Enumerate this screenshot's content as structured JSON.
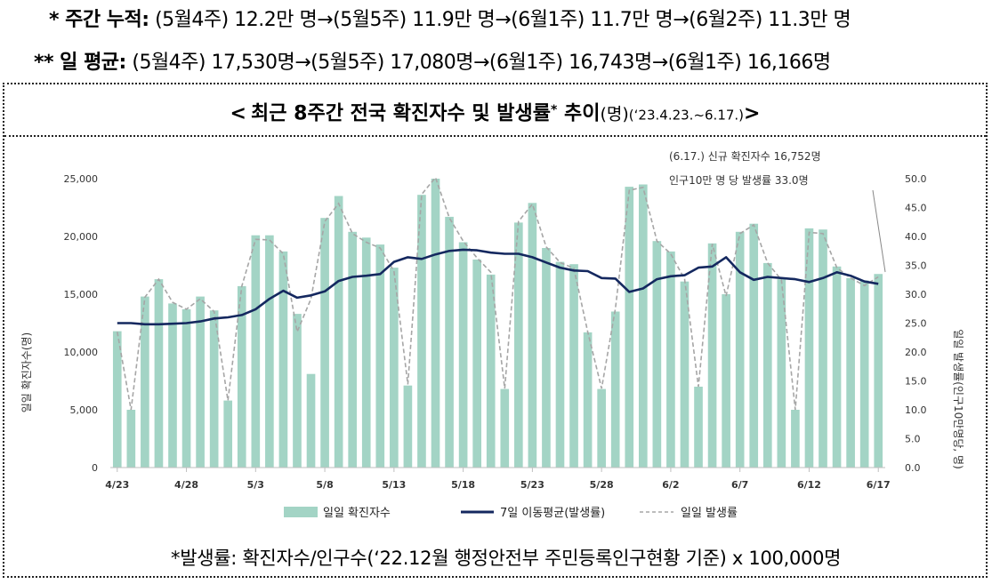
{
  "summary": {
    "weekly_label": "* 주간 누적:",
    "weekly_text": "(5월4주) 12.2만 명→(5월5주) 11.9만 명→(6월1주) 11.7만 명→(6월2주) 11.3만 명",
    "daily_label": "** 일 평균:",
    "daily_text": "(5월4주) 17,530명→(5월5주) 17,080명→(6월1주) 16,743명→(6월1주) 16,166명"
  },
  "title": {
    "open": "<",
    "main": "최근 8주간 전국 확진자수 및 발생률",
    "star": "*",
    "trend": " 추이",
    "unit": "(명)",
    "period": "(‘23.4.23.~6.17.)",
    "close": ">"
  },
  "footnote": "*발생률: 확진자수/인구수(‘22.12월 행정안전부 주민등록인구현황 기준) x 100,000명",
  "colors": {
    "bar": "#a3d4c5",
    "avg_line": "#14285f",
    "daily_rate_line": "#a6a6a6",
    "axis_text": "#333333"
  },
  "chart_data": {
    "type": "bar",
    "x_tick_labels": [
      "4/23",
      "4/28",
      "5/3",
      "5/8",
      "5/13",
      "5/18",
      "5/23",
      "5/28",
      "6/2",
      "6/7",
      "6/12",
      "6/17"
    ],
    "dates": [
      "4/23",
      "4/24",
      "4/25",
      "4/26",
      "4/27",
      "4/28",
      "4/29",
      "4/30",
      "5/1",
      "5/2",
      "5/3",
      "5/4",
      "5/5",
      "5/6",
      "5/7",
      "5/8",
      "5/9",
      "5/10",
      "5/11",
      "5/12",
      "5/13",
      "5/14",
      "5/15",
      "5/16",
      "5/17",
      "5/18",
      "5/19",
      "5/20",
      "5/21",
      "5/22",
      "5/23",
      "5/24",
      "5/25",
      "5/26",
      "5/27",
      "5/28",
      "5/29",
      "5/30",
      "5/31",
      "6/1",
      "6/2",
      "6/3",
      "6/4",
      "6/5",
      "6/6",
      "6/7",
      "6/8",
      "6/9",
      "6/10",
      "6/11",
      "6/12",
      "6/13",
      "6/14",
      "6/15",
      "6/16",
      "6/17"
    ],
    "y_left": {
      "label": "일일 확진자수(명)",
      "min": 0,
      "max": 25000,
      "ticks": [
        "0",
        "5,000",
        "10,000",
        "15,000",
        "20,000",
        "25,000"
      ],
      "tick_values": [
        0,
        5000,
        10000,
        15000,
        20000,
        25000
      ]
    },
    "y_right": {
      "label": "일일 발생률(인구10만명당, 명)",
      "min": 0,
      "max": 50,
      "ticks": [
        "0.0",
        "5.0",
        "10.0",
        "15.0",
        "20.0",
        "25.0",
        "30.0",
        "35.0",
        "40.0",
        "45.0",
        "50.0"
      ],
      "tick_values": [
        0,
        5,
        10,
        15,
        20,
        25,
        30,
        35,
        40,
        45,
        50
      ]
    },
    "series": [
      {
        "name": "일일 확진자수",
        "axis": "left",
        "type": "bar",
        "values": [
          11800,
          5000,
          14800,
          16300,
          14200,
          13700,
          14800,
          13600,
          5800,
          15700,
          20100,
          20100,
          18700,
          13300,
          8100,
          21600,
          23500,
          20400,
          19900,
          19300,
          17300,
          7100,
          23600,
          25000,
          21700,
          19500,
          18000,
          16700,
          6800,
          21200,
          22900,
          19000,
          17800,
          17600,
          11700,
          6800,
          13500,
          24300,
          24500,
          19600,
          18700,
          16100,
          7000,
          19400,
          15000,
          20400,
          21100,
          17700,
          16300,
          5000,
          20700,
          20600,
          17400,
          16400,
          16200,
          16752
        ]
      },
      {
        "name": "7일 이동평균(발생률)",
        "axis": "right",
        "type": "line",
        "values": [
          25.0,
          25.0,
          24.8,
          24.8,
          24.9,
          25.0,
          25.3,
          25.8,
          26.0,
          26.4,
          27.4,
          29.2,
          30.6,
          29.4,
          29.8,
          30.5,
          32.3,
          33.0,
          33.2,
          33.5,
          35.6,
          36.4,
          36.1,
          36.9,
          37.5,
          37.7,
          37.6,
          37.2,
          37.0,
          37.0,
          36.4,
          35.5,
          34.6,
          34.1,
          34.0,
          32.8,
          32.7,
          30.4,
          31.0,
          32.6,
          33.1,
          33.3,
          34.6,
          34.8,
          36.4,
          33.8,
          32.5,
          33.0,
          32.8,
          32.6,
          32.1,
          32.8,
          33.8,
          33.2,
          32.2,
          31.8
        ]
      },
      {
        "name": "일일 발생률",
        "axis": "right",
        "type": "line",
        "values": [
          23.5,
          10.0,
          29.5,
          32.6,
          28.6,
          27.4,
          29.2,
          27.0,
          11.6,
          31.4,
          39.5,
          39.4,
          37.0,
          23.5,
          29.2,
          42.6,
          45.7,
          40.5,
          39.0,
          38.0,
          34.0,
          14.4,
          47.3,
          50.2,
          43.2,
          39.2,
          36.3,
          33.8,
          13.7,
          42.6,
          45.6,
          38.2,
          35.5,
          34.5,
          23.5,
          13.7,
          27.5,
          48.0,
          48.5,
          39.2,
          37.0,
          32.6,
          14.0,
          38.7,
          29.7,
          40.5,
          42.0,
          35.4,
          32.5,
          10.0,
          40.7,
          40.5,
          34.6,
          32.8,
          31.5,
          33.0
        ]
      }
    ],
    "annotation": {
      "line1": "(6.17.) 신규 확진자수 16,752명",
      "line2": "인구10만 명 당 발생률 33.0명"
    },
    "legend": {
      "placement": "bottom"
    }
  }
}
